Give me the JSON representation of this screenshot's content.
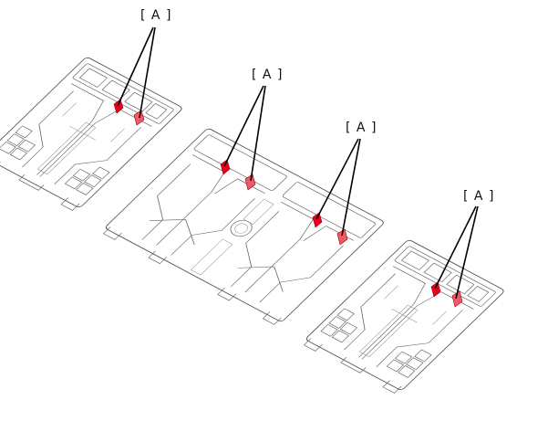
{
  "callouts": [
    {
      "label": "[ A ]",
      "highlight_color": "#e8001c",
      "highlight_color_2": "#ef5a6a"
    },
    {
      "label": "[ A ]",
      "highlight_color": "#e8001c",
      "highlight_color_2": "#ef5a6a"
    },
    {
      "label": "[ A ]",
      "highlight_color": "#e8001c",
      "highlight_color_2": "#ef5a6a"
    },
    {
      "label": "[ A ]",
      "highlight_color": "#e8001c",
      "highlight_color_2": "#ef5a6a"
    }
  ],
  "colors": {
    "line": "#555555",
    "callout": "#000000"
  }
}
